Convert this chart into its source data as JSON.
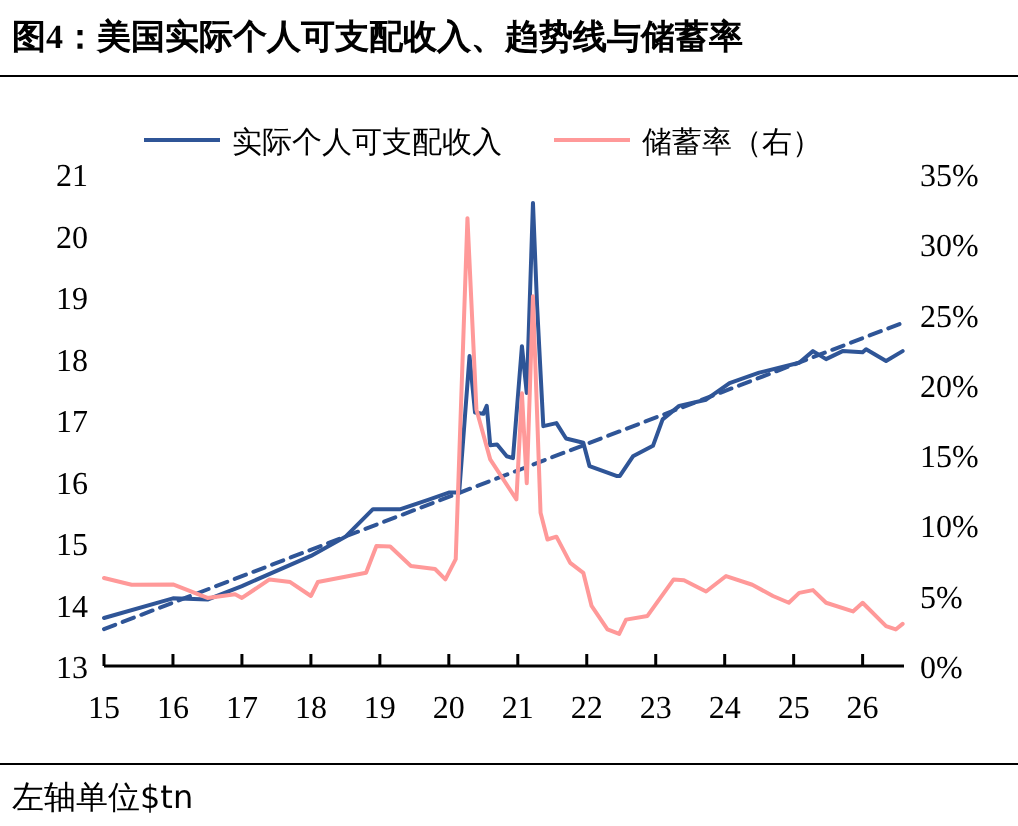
{
  "chart_data": {
    "type": "line",
    "title": "图4：美国实际个人可支配收入、趋势线与储蓄率",
    "annotations": [
      "左轴单位$tn"
    ],
    "legend": "top",
    "xlim": [
      15,
      26.6
    ],
    "xticks": [
      15,
      16,
      17,
      18,
      19,
      20,
      21,
      22,
      23,
      24,
      25,
      26
    ],
    "ylim": [
      13,
      21
    ],
    "yticks": [
      13,
      14,
      15,
      16,
      17,
      18,
      19,
      20,
      21
    ],
    "y2lim": [
      0,
      35
    ],
    "y2ticks": [
      {
        "value": 0,
        "label": "0%"
      },
      {
        "value": 5,
        "label": "5%"
      },
      {
        "value": 10,
        "label": "10%"
      },
      {
        "value": 15,
        "label": "15%"
      },
      {
        "value": 20,
        "label": "20%"
      },
      {
        "value": 25,
        "label": "25%"
      },
      {
        "value": 30,
        "label": "30%"
      },
      {
        "value": 35,
        "label": "35%"
      }
    ],
    "series": [
      {
        "name": "实际个人可支配收入",
        "color": "#2f5597",
        "x": [
          15,
          16,
          16.5,
          17,
          18,
          18.5,
          18.9,
          19.3,
          19.7,
          20,
          20.15,
          20.3,
          20.38,
          20.5,
          20.55,
          20.6,
          20.7,
          20.84,
          20.93,
          21.06,
          21.13,
          21.22,
          21.28,
          21.37,
          21.56,
          21.7,
          21.95,
          22.04,
          22.43,
          22.48,
          22.67,
          22.96,
          23.1,
          23.34,
          23.73,
          24.07,
          24.5,
          25.08,
          25.28,
          25.47,
          25.71,
          26,
          26.05,
          26.34,
          26.58
        ],
        "values": [
          13.78,
          14.1,
          14.08,
          14.3,
          14.79,
          15.1,
          15.55,
          15.55,
          15.7,
          15.82,
          15.82,
          18.04,
          17.12,
          17.1,
          17.23,
          16.59,
          16.6,
          16.41,
          16.38,
          18.2,
          17.44,
          20.53,
          18.85,
          16.9,
          16.95,
          16.7,
          16.63,
          16.25,
          16.09,
          16.09,
          16.41,
          16.58,
          17.01,
          17.23,
          17.33,
          17.6,
          17.77,
          17.93,
          18.12,
          17.99,
          18.12,
          18.1,
          18.15,
          17.96,
          18.12
        ]
      },
      {
        "color": "#2f5597",
        "line_style": "dashed",
        "x": [
          15,
          26.58
        ],
        "values": [
          13.6,
          18.58
        ]
      },
      {
        "name": "储蓄率（右）",
        "color": "#ff9999",
        "axis": "y2",
        "x": [
          15,
          15.4,
          16,
          16.5,
          16.9,
          17,
          17.4,
          17.7,
          18,
          18.1,
          18.8,
          18.95,
          19.15,
          19.45,
          19.8,
          19.95,
          20.1,
          20.27,
          20.4,
          20.6,
          20.98,
          21.06,
          21.13,
          21.22,
          21.33,
          21.43,
          21.56,
          21.76,
          21.95,
          22.07,
          22.3,
          22.47,
          22.57,
          22.88,
          23.26,
          23.41,
          23.73,
          24.02,
          24.4,
          24.7,
          24.93,
          25.08,
          25.28,
          25.47,
          25.86,
          26,
          26.34,
          26.48,
          26.58
        ],
        "values": [
          6.26,
          5.78,
          5.8,
          4.84,
          5.1,
          4.84,
          6.16,
          5.97,
          4.98,
          5.97,
          6.63,
          8.53,
          8.5,
          7.11,
          6.9,
          6.16,
          7.6,
          31.86,
          18.25,
          14.7,
          11.85,
          19.4,
          13,
          26.3,
          10.9,
          9,
          9.2,
          7.34,
          6.63,
          4.27,
          2.6,
          2.28,
          3.3,
          3.56,
          6.16,
          6.1,
          5.3,
          6.4,
          5.78,
          4.98,
          4.5,
          5.2,
          5.4,
          4.5,
          3.88,
          4.5,
          2.84,
          2.6,
          3
        ]
      }
    ]
  }
}
